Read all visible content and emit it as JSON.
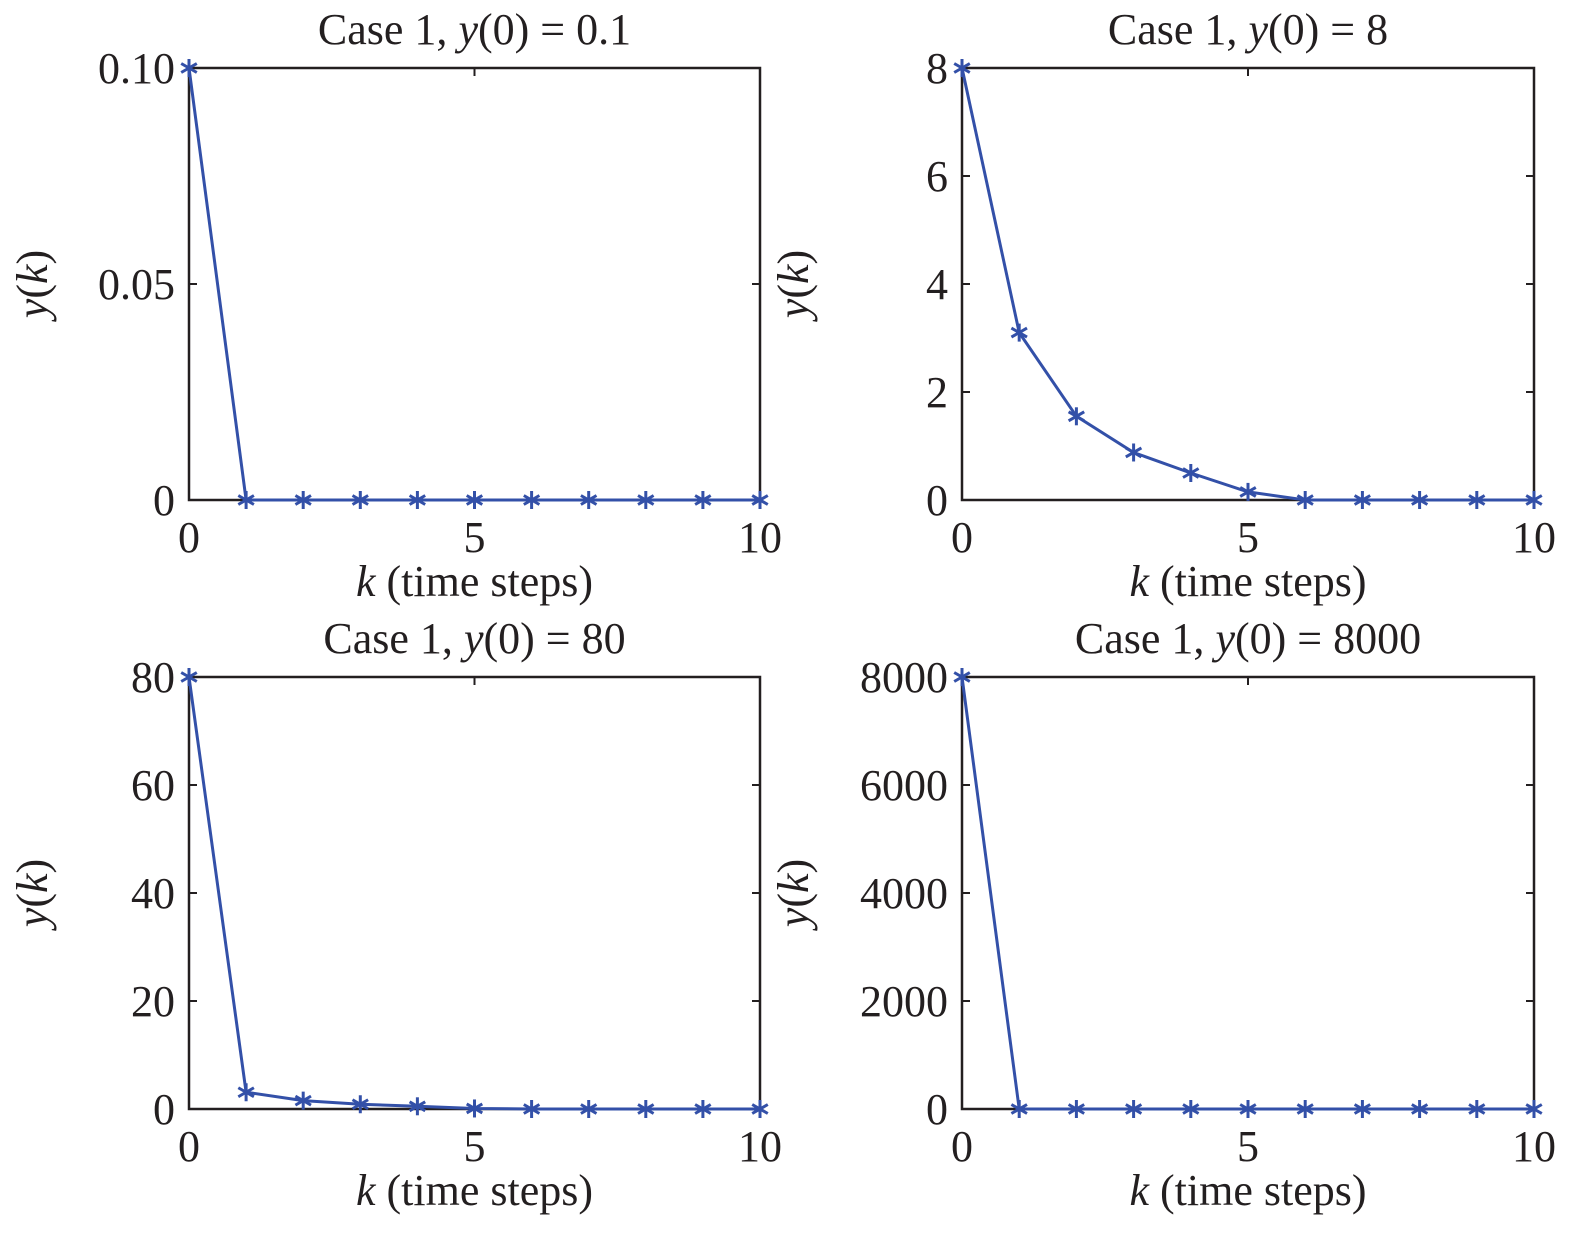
{
  "chart_data": [
    {
      "type": "line",
      "title_prefix": "Case 1, ",
      "title_var": "y",
      "title_suffix": "(0) = 0.1",
      "xlabel_var": "k",
      "xlabel_text": " (time steps)",
      "ylabel_var_y": "y",
      "ylabel_var_k": "k",
      "xlim": [
        0,
        10
      ],
      "ylim": [
        0,
        0.1
      ],
      "xticks": [
        0,
        5,
        10
      ],
      "xtick_labels": [
        "0",
        "5",
        "10"
      ],
      "yticks": [
        0,
        0.05,
        0.1
      ],
      "ytick_labels": [
        "0",
        "0.05",
        "0.10"
      ],
      "x": [
        0,
        1,
        2,
        3,
        4,
        5,
        6,
        7,
        8,
        9,
        10
      ],
      "y": [
        0.1,
        0,
        0,
        0,
        0,
        0,
        0,
        0,
        0,
        0,
        0
      ],
      "grid": false,
      "color": "#3350a8",
      "marker": "asterisk"
    },
    {
      "type": "line",
      "title_prefix": "Case 1, ",
      "title_var": "y",
      "title_suffix": "(0) = 8",
      "xlabel_var": "k",
      "xlabel_text": " (time steps)",
      "ylabel_var_y": "y",
      "ylabel_var_k": "k",
      "xlim": [
        0,
        10
      ],
      "ylim": [
        0,
        8
      ],
      "xticks": [
        0,
        5,
        10
      ],
      "xtick_labels": [
        "0",
        "5",
        "10"
      ],
      "yticks": [
        0,
        2,
        4,
        6,
        8
      ],
      "ytick_labels": [
        "0",
        "2",
        "4",
        "6",
        "8"
      ],
      "x": [
        0,
        1,
        2,
        3,
        4,
        5,
        6,
        7,
        8,
        9,
        10
      ],
      "y": [
        8,
        3.1,
        1.55,
        0.88,
        0.5,
        0.15,
        0,
        0,
        0,
        0,
        0
      ],
      "grid": false,
      "color": "#3350a8",
      "marker": "asterisk"
    },
    {
      "type": "line",
      "title_prefix": "Case 1, ",
      "title_var": "y",
      "title_suffix": "(0) = 80",
      "xlabel_var": "k",
      "xlabel_text": " (time steps)",
      "ylabel_var_y": "y",
      "ylabel_var_k": "k",
      "xlim": [
        0,
        10
      ],
      "ylim": [
        0,
        80
      ],
      "xticks": [
        0,
        5,
        10
      ],
      "xtick_labels": [
        "0",
        "5",
        "10"
      ],
      "yticks": [
        0,
        20,
        40,
        60,
        80
      ],
      "ytick_labels": [
        "0",
        "20",
        "40",
        "60",
        "80"
      ],
      "x": [
        0,
        1,
        2,
        3,
        4,
        5,
        6,
        7,
        8,
        9,
        10
      ],
      "y": [
        80,
        3.1,
        1.55,
        0.88,
        0.5,
        0.1,
        0,
        0,
        0,
        0,
        0
      ],
      "grid": false,
      "color": "#3350a8",
      "marker": "asterisk"
    },
    {
      "type": "line",
      "title_prefix": "Case 1, ",
      "title_var": "y",
      "title_suffix": "(0) = 8000",
      "xlabel_var": "k",
      "xlabel_text": " (time steps)",
      "ylabel_var_y": "y",
      "ylabel_var_k": "k",
      "xlim": [
        0,
        10
      ],
      "ylim": [
        0,
        8000
      ],
      "xticks": [
        0,
        5,
        10
      ],
      "xtick_labels": [
        "0",
        "5",
        "10"
      ],
      "yticks": [
        0,
        2000,
        4000,
        6000,
        8000
      ],
      "ytick_labels": [
        "0",
        "2000",
        "4000",
        "6000",
        "8000"
      ],
      "x": [
        0,
        1,
        2,
        3,
        4,
        5,
        6,
        7,
        8,
        9,
        10
      ],
      "y": [
        8000,
        0,
        0,
        0,
        0,
        0,
        0,
        0,
        0,
        0,
        0
      ],
      "grid": false,
      "color": "#3350a8",
      "marker": "asterisk"
    }
  ]
}
